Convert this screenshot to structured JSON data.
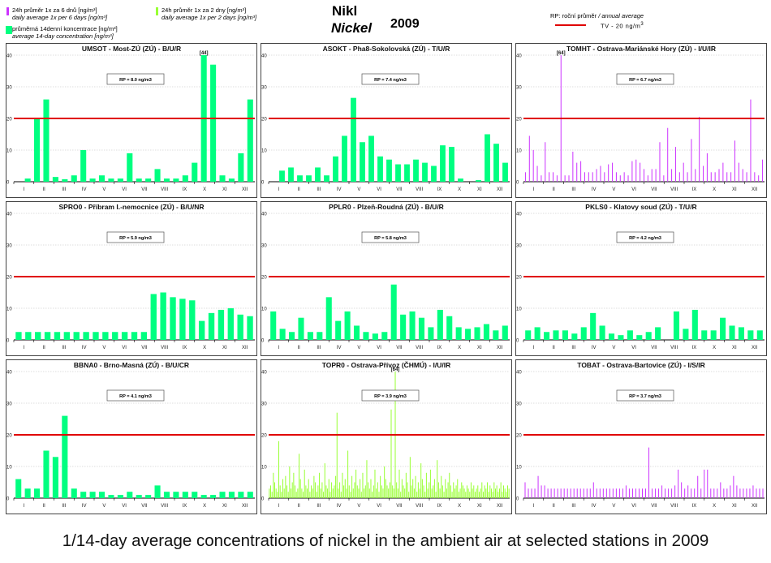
{
  "header": {
    "legend": {
      "item1_line1": "24h průměr 1x za 6 dnů [ng/m³]",
      "item1_line2": "daily average 1x per 6 days [ng/m³]",
      "item1_color": "#cc33ff",
      "item2_line1": "průměrná 14denní koncentrace [ng/m³]",
      "item2_line2": "average 14-day concentration [ng/m³]",
      "item2_color": "#00ff80",
      "item3_line1": "24h průměr 1x za 2 dny [ng/m³]",
      "item3_line2": "daily average 1x per 2 days [ng/m³]",
      "item3_color": "#99ff33"
    },
    "title_cz": "Nikl",
    "title_en": "Nickel",
    "year": "2009",
    "rp_label_cz": "RP: roční průměr",
    "rp_label_en": "/ annual average",
    "tv_label": "TV - 20 ng/m",
    "tv_label_sup": "3",
    "tv_color": "#e00000"
  },
  "caption": "1/14-day average concentrations of nickel in the ambient air at selected stations in 2009",
  "months": [
    "I",
    "II",
    "III",
    "IV",
    "V",
    "VI",
    "VII",
    "VIII",
    "IX",
    "X",
    "XI",
    "XII"
  ],
  "chart_data": [
    {
      "title": "UMSOT - Most-ZÚ (ZÚ) - B/U/R",
      "type": "bar",
      "rp": "RP = 8.0 ng/m3",
      "ylim": [
        0,
        40
      ],
      "yticks": [
        0,
        10,
        20,
        30,
        40
      ],
      "tv": 20,
      "color": "#00ff80",
      "mode": "bar14",
      "values": [
        0,
        1,
        20,
        26,
        1.5,
        0.8,
        2,
        10,
        1,
        2,
        1,
        1,
        9,
        1,
        1,
        4,
        1,
        1,
        2,
        6,
        40,
        37,
        2,
        1,
        9,
        26
      ],
      "annotation": {
        "text": "[44]",
        "index": 20
      }
    },
    {
      "title": "ASOKT - Pha8-Sokolovská (ZÚ) - T/U/R",
      "type": "bar",
      "rp": "RP = 7.4 ng/m3",
      "ylim": [
        0,
        40
      ],
      "yticks": [
        0,
        10,
        20,
        30,
        40
      ],
      "tv": 20,
      "color": "#00ff80",
      "mode": "bar14",
      "values": [
        0,
        3.5,
        4.5,
        2,
        2,
        4.5,
        2,
        8,
        14.5,
        26.5,
        12.5,
        14.5,
        8,
        7,
        5.5,
        5.5,
        7,
        6,
        5,
        11.5,
        11,
        1,
        0,
        0.5,
        15,
        12,
        6
      ]
    },
    {
      "title": "TOMHT - Ostrava-Mariánské Hory (ZÚ) - I/U/IR",
      "type": "bar",
      "rp": "RP = 6.7 ng/m3",
      "ylim": [
        0,
        40
      ],
      "yticks": [
        0,
        10,
        20,
        30,
        40
      ],
      "tv": 20,
      "color": "#cc33ff",
      "mode": "spike",
      "values": [
        3,
        14.5,
        10,
        5,
        2,
        12.5,
        3,
        3,
        2,
        40,
        2,
        2,
        9.5,
        6,
        6.5,
        3,
        3,
        3,
        4,
        5,
        3,
        5.5,
        6,
        3,
        2,
        3,
        2,
        6.5,
        7,
        6,
        4,
        2,
        4,
        4,
        12.5,
        2,
        17,
        4,
        11,
        3,
        6,
        3,
        13.5,
        4,
        20.5,
        5,
        9,
        3,
        3,
        4,
        6,
        3,
        3,
        13,
        6,
        4,
        3,
        26,
        3,
        2,
        7
      ],
      "annotation": {
        "text": "[64]",
        "index": 9
      }
    },
    {
      "title": "SPRO0 - Příbram I.-nemocnice (ZÚ) - B/U/NR",
      "type": "bar",
      "rp": "RP = 5.9 ng/m3",
      "ylim": [
        0,
        40
      ],
      "yticks": [
        0,
        10,
        20,
        30,
        40
      ],
      "tv": 20,
      "color": "#00ff80",
      "mode": "bar14",
      "values": [
        2.5,
        2.5,
        2.5,
        2.5,
        2.5,
        2.5,
        2.5,
        2.5,
        2.5,
        2.5,
        2.5,
        2.5,
        2.5,
        2.5,
        14.5,
        15,
        13.5,
        13,
        12.5,
        6,
        8.5,
        9.5,
        10,
        8,
        7.5
      ]
    },
    {
      "title": "PPLR0 - Plzeň-Roudná (ZÚ) - B/U/R",
      "type": "bar",
      "rp": "RP = 5.8 ng/m3",
      "ylim": [
        0,
        40
      ],
      "yticks": [
        0,
        10,
        20,
        30,
        40
      ],
      "tv": 20,
      "color": "#00ff80",
      "mode": "bar14",
      "values": [
        9,
        3.5,
        2.5,
        7,
        2.5,
        2.5,
        13.5,
        6,
        9,
        4.5,
        2.5,
        2,
        2.5,
        17.5,
        8,
        9,
        7,
        4,
        9.5,
        7.5,
        4,
        3.5,
        4,
        5,
        3,
        4.5
      ]
    },
    {
      "title": "PKLS0 - Klatovy soud (ZÚ) - T/U/R",
      "type": "bar",
      "rp": "RP = 4.2 ng/m3",
      "ylim": [
        0,
        40
      ],
      "yticks": [
        0,
        10,
        20,
        30,
        40
      ],
      "tv": 20,
      "color": "#00ff80",
      "mode": "bar14",
      "values": [
        3,
        4,
        2.5,
        3,
        3,
        2,
        4,
        8.5,
        4.5,
        2,
        1.5,
        3,
        1.5,
        2.5,
        4,
        0,
        9,
        3.5,
        9.5,
        3,
        3,
        7,
        4.5,
        4,
        3,
        3
      ]
    },
    {
      "title": "BBNA0 - Brno-Masná (ZÚ) - B/U/CR",
      "type": "bar",
      "rp": "RP = 4.1 ng/m3",
      "ylim": [
        0,
        40
      ],
      "yticks": [
        0,
        10,
        20,
        30,
        40
      ],
      "tv": 20,
      "color": "#00ff80",
      "mode": "bar14",
      "values": [
        6,
        3,
        3,
        15,
        13,
        26,
        3,
        2,
        2,
        2,
        1,
        1,
        2,
        1,
        1,
        4,
        2,
        2,
        2,
        2,
        1,
        1,
        2,
        2,
        2,
        2
      ]
    },
    {
      "title": "TOPR0 - Ostrava-Přívoz (ČHMÚ) - I/U/IR",
      "type": "bar",
      "rp": "RP = 3.9 ng/m3",
      "ylim": [
        0,
        40
      ],
      "yticks": [
        0,
        10,
        20,
        30,
        40
      ],
      "tv": 20,
      "color": "#99ff33",
      "mode": "spike",
      "values": [
        3,
        4,
        2,
        8,
        5,
        3,
        2,
        18,
        4,
        2,
        6,
        3,
        7,
        4,
        2,
        10,
        3,
        5,
        8,
        4,
        2,
        3,
        14,
        6,
        3,
        2,
        9,
        4,
        3,
        6,
        2,
        4,
        3,
        7,
        5,
        2,
        4,
        8,
        3,
        5,
        2,
        11,
        4,
        3,
        6,
        2,
        5,
        3,
        4,
        7,
        27,
        3,
        5,
        2,
        8,
        4,
        6,
        3,
        15,
        4,
        2,
        7,
        3,
        5,
        9,
        4,
        3,
        6,
        2,
        8,
        3,
        4,
        12,
        5,
        3,
        6,
        2,
        4,
        9,
        3,
        5,
        2,
        7,
        4,
        3,
        10,
        6,
        4,
        3,
        5,
        28,
        4,
        3,
        40,
        5,
        3,
        9,
        2,
        6,
        4,
        3,
        8,
        5,
        2,
        13,
        4,
        6,
        3,
        7,
        2,
        5,
        3,
        11,
        6,
        4,
        2,
        8,
        3,
        5,
        9,
        3,
        4,
        6,
        2,
        12,
        5,
        3,
        7,
        4,
        2,
        6,
        3,
        5,
        8,
        4,
        2,
        5,
        3,
        4,
        6,
        2,
        3,
        5,
        4,
        3,
        2,
        4,
        3,
        2,
        5,
        3,
        4,
        2,
        3,
        4,
        2,
        3,
        5,
        2,
        4,
        3,
        5,
        2,
        4,
        3,
        2,
        5,
        3,
        4,
        2,
        3,
        5,
        2,
        4,
        3,
        2,
        4,
        3
      ],
      "annotation": {
        "text": "[64]",
        "index": 93
      }
    },
    {
      "title": "TOBAT - Ostrava-Bartovice (ZÚ) - I/S/IR",
      "type": "bar",
      "rp": "RP = 3.7 ng/m3",
      "ylim": [
        0,
        40
      ],
      "yticks": [
        0,
        10,
        20,
        30,
        40
      ],
      "tv": 20,
      "color": "#cc33ff",
      "mode": "spike",
      "values": [
        5,
        3,
        3,
        3,
        7,
        4,
        4,
        3,
        3,
        3,
        3,
        3,
        3,
        3,
        3,
        3,
        3,
        3,
        3,
        3,
        3,
        5,
        3,
        3,
        3,
        3,
        3,
        3,
        3,
        3,
        3,
        4,
        3,
        3,
        3,
        3,
        3,
        3,
        16,
        3,
        3,
        3,
        4,
        3,
        3,
        3,
        4,
        9,
        5,
        3,
        4,
        3,
        3,
        7,
        3,
        9,
        9,
        3,
        3,
        3,
        5,
        3,
        3,
        4,
        7,
        4,
        3,
        3,
        3,
        3,
        4,
        3,
        3,
        3
      ]
    }
  ]
}
